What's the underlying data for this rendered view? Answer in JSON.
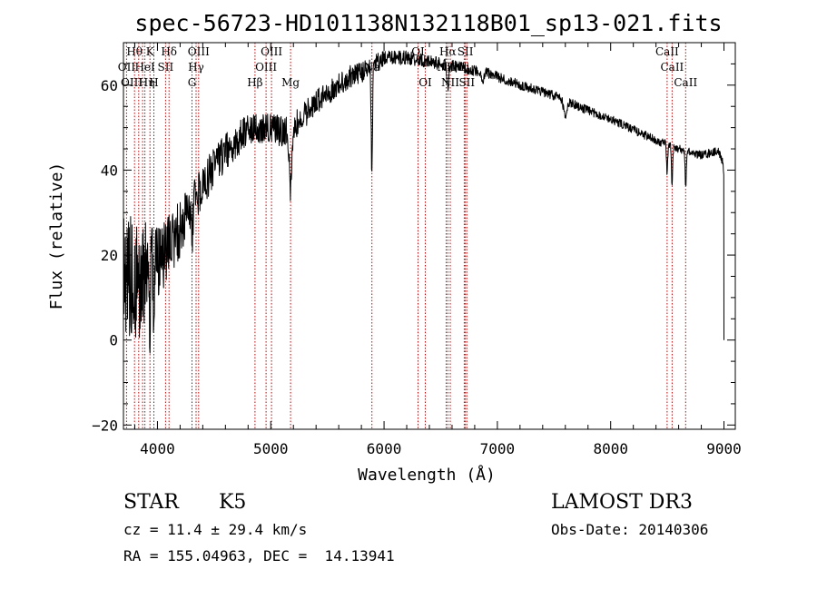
{
  "chart_data": {
    "type": "line",
    "title": "spec-56723-HD101138N132118B01_sp13-021.fits",
    "xlabel": "Wavelength (Å)",
    "ylabel": "Flux (relative)",
    "xlim": [
      3700,
      9100
    ],
    "ylim": [
      -21,
      70
    ],
    "xticks": [
      4000,
      5000,
      6000,
      7000,
      8000,
      9000
    ],
    "yticks": [
      -20,
      0,
      20,
      40,
      60
    ],
    "colors": {
      "spectrum": "#000000",
      "lines": "#cc0000",
      "axes": "#000000"
    },
    "continuum": [
      [
        3700,
        15
      ],
      [
        3800,
        14
      ],
      [
        3900,
        15
      ],
      [
        4000,
        19
      ],
      [
        4100,
        22
      ],
      [
        4200,
        26
      ],
      [
        4300,
        31
      ],
      [
        4400,
        36
      ],
      [
        4500,
        41
      ],
      [
        4600,
        44
      ],
      [
        4700,
        47
      ],
      [
        4800,
        49
      ],
      [
        4900,
        50
      ],
      [
        5000,
        50
      ],
      [
        5100,
        49
      ],
      [
        5200,
        50
      ],
      [
        5300,
        53
      ],
      [
        5400,
        56
      ],
      [
        5500,
        58
      ],
      [
        5600,
        60
      ],
      [
        5700,
        62
      ],
      [
        5800,
        63
      ],
      [
        5900,
        65
      ],
      [
        6000,
        66
      ],
      [
        6100,
        66.5
      ],
      [
        6200,
        66.5
      ],
      [
        6300,
        66
      ],
      [
        6400,
        65.5
      ],
      [
        6500,
        65
      ],
      [
        6600,
        64.5
      ],
      [
        6700,
        64
      ],
      [
        6800,
        63.5
      ],
      [
        6900,
        63
      ],
      [
        7000,
        62
      ],
      [
        7200,
        60
      ],
      [
        7400,
        58.5
      ],
      [
        7600,
        56.5
      ],
      [
        7800,
        54
      ],
      [
        8000,
        52
      ],
      [
        8200,
        49.5
      ],
      [
        8400,
        47
      ],
      [
        8600,
        45
      ],
      [
        8800,
        43.5
      ],
      [
        8950,
        44.5
      ],
      [
        8990,
        42
      ],
      [
        9000,
        37
      ]
    ],
    "features": [
      {
        "wavelength": 5175,
        "depth": 14,
        "width": 12
      },
      {
        "wavelength": 5892,
        "depth": 24,
        "width": 6
      },
      {
        "wavelength": 6563,
        "depth": 6,
        "width": 6
      },
      {
        "wavelength": 8498,
        "depth": 7,
        "width": 5
      },
      {
        "wavelength": 8542,
        "depth": 10,
        "width": 5
      },
      {
        "wavelength": 8662,
        "depth": 9,
        "width": 5
      },
      {
        "wavelength": 4305,
        "depth": 6,
        "width": 8
      },
      {
        "wavelength": 3933,
        "depth": 12,
        "width": 6
      },
      {
        "wavelength": 3968,
        "depth": 10,
        "width": 6
      },
      {
        "wavelength": 6870,
        "depth": 3,
        "width": 10
      },
      {
        "wavelength": 7600,
        "depth": 4,
        "width": 15
      }
    ],
    "noise": [
      [
        3700,
        16
      ],
      [
        3900,
        13
      ],
      [
        4000,
        9
      ],
      [
        4200,
        7
      ],
      [
        4400,
        5
      ],
      [
        4800,
        4
      ],
      [
        5100,
        3.5
      ],
      [
        5400,
        3
      ],
      [
        5800,
        2.5
      ],
      [
        6200,
        1.6
      ],
      [
        7000,
        1.2
      ],
      [
        8000,
        1.0
      ],
      [
        9000,
        1.0
      ]
    ],
    "spectral_lines": [
      {
        "label": "Hθ",
        "wavelength": 3798,
        "row": 1,
        "align": "middle"
      },
      {
        "label": "OII",
        "wavelength": 3727,
        "row": 2,
        "align": "middle"
      },
      {
        "label": "OIII",
        "wavelength": 3869,
        "row": 3,
        "align": "end"
      },
      {
        "label": "K",
        "wavelength": 3934,
        "row": 1,
        "align": "middle"
      },
      {
        "label": "HeI",
        "wavelength": 3889,
        "row": 2,
        "align": "middle"
      },
      {
        "label": "Hη",
        "wavelength": 3835,
        "row": 3,
        "align": "start"
      },
      {
        "label": "Hδ",
        "wavelength": 4102,
        "row": 1,
        "align": "middle"
      },
      {
        "label": "SII",
        "wavelength": 4072,
        "row": 2,
        "align": "middle"
      },
      {
        "label": "H",
        "wavelength": 3968,
        "row": 3,
        "align": "middle"
      },
      {
        "label": "OIII",
        "wavelength": 4363,
        "row": 1,
        "align": "middle"
      },
      {
        "label": "Hγ",
        "wavelength": 4341,
        "row": 2,
        "align": "middle"
      },
      {
        "label": "G",
        "wavelength": 4305,
        "row": 3,
        "align": "middle"
      },
      {
        "label": "Hβ",
        "wavelength": 4861,
        "row": 3,
        "align": "middle"
      },
      {
        "label": "OIII",
        "wavelength": 5007,
        "row": 1,
        "align": "middle"
      },
      {
        "label": "OIII",
        "wavelength": 4959,
        "row": 2,
        "align": "middle"
      },
      {
        "label": "Mg",
        "wavelength": 5175,
        "row": 3,
        "align": "middle"
      },
      {
        "label": "Na",
        "wavelength": 5893,
        "row": 2,
        "align": "middle"
      },
      {
        "label": "OI",
        "wavelength": 6300,
        "row": 1,
        "align": "middle"
      },
      {
        "label": "OI",
        "wavelength": 6364,
        "row": 3,
        "align": "middle"
      },
      {
        "label": "Hα",
        "wavelength": 6563,
        "row": 1,
        "align": "middle"
      },
      {
        "label": "NII",
        "wavelength": 6548,
        "row": 2,
        "align": "middle"
      },
      {
        "label": "NII",
        "wavelength": 6584,
        "row": 3,
        "align": "middle"
      },
      {
        "label": "SII",
        "wavelength": 6717,
        "row": 1,
        "align": "middle"
      },
      {
        "label": "Li",
        "wavelength": 6708,
        "row": 2,
        "align": "middle"
      },
      {
        "label": "SII",
        "wavelength": 6731,
        "row": 3,
        "align": "middle"
      },
      {
        "label": "CaII",
        "wavelength": 8498,
        "row": 1,
        "align": "middle"
      },
      {
        "label": "CaII",
        "wavelength": 8542,
        "row": 2,
        "align": "middle"
      },
      {
        "label": "CaII",
        "wavelength": 8662,
        "row": 3,
        "align": "middle"
      }
    ]
  },
  "footer": {
    "object_class": "STAR",
    "subclass": "K5",
    "survey": "LAMOST DR3",
    "redshift": "cz = 11.4 ± 29.4 km/s",
    "obs_date": "Obs-Date: 20140306",
    "coords": "RA = 155.04963, DEC =  14.13941"
  }
}
